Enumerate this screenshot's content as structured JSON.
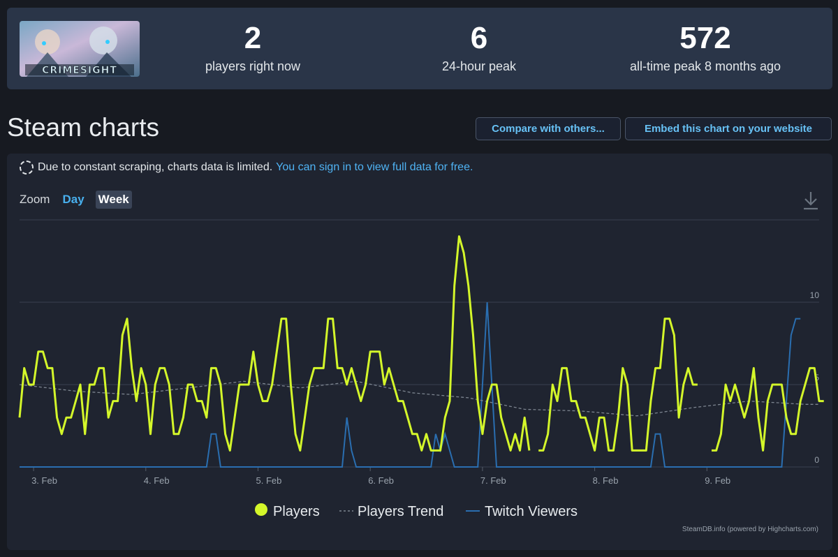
{
  "stats": {
    "game_logo_text": "CRIMESIGHT",
    "current": {
      "value": "2",
      "label": "players right now"
    },
    "peak24": {
      "value": "6",
      "label": "24-hour peak"
    },
    "alltime": {
      "value": "572",
      "label": "all-time peak 8 months ago"
    }
  },
  "header": {
    "title": "Steam charts",
    "compare_label": "Compare with others...",
    "embed_label": "Embed this chart on your website"
  },
  "notice": {
    "text": "Due to constant scraping, charts data is limited.",
    "link": "You can sign in to view full data for free."
  },
  "zoom": {
    "label": "Zoom",
    "options": [
      "Day",
      "Week"
    ],
    "selected": "Week"
  },
  "icons": {
    "download": "download-icon",
    "spinner": "dashed-circle-icon"
  },
  "colors": {
    "players": "#d4f72a",
    "trend": "#7d8590",
    "twitch": "#2a6eb0",
    "background": "#1f2430"
  },
  "credit": "SteamDB.info (powered by Highcharts.com)",
  "chart_data": {
    "type": "line",
    "x_axis": {
      "type": "datetime",
      "start": "2 Feb 21:00",
      "end": "10 Feb 00:00",
      "ticks": [
        "3. Feb",
        "4. Feb",
        "5. Feb",
        "6. Feb",
        "7. Feb",
        "8. Feb",
        "9. Feb"
      ]
    },
    "y_axis": {
      "min": 0,
      "max": 15,
      "ticks": [
        0,
        5,
        10
      ],
      "grid": true
    },
    "legend": {
      "position": "bottom-center"
    },
    "interval_hours": 1,
    "series": [
      {
        "name": "Players",
        "values": [
          3,
          6,
          5,
          5,
          7,
          7,
          6,
          6,
          3,
          2,
          3,
          3,
          4,
          5,
          2,
          5,
          5,
          6,
          6,
          3,
          4,
          4,
          8,
          9,
          6,
          4,
          6,
          5,
          2,
          5,
          6,
          6,
          5,
          2,
          2,
          3,
          5,
          5,
          4,
          4,
          3,
          6,
          6,
          5,
          2,
          1,
          3,
          5,
          5,
          5,
          7,
          5,
          4,
          4,
          5,
          7,
          9,
          9,
          5,
          2,
          1,
          3,
          5,
          6,
          6,
          6,
          9,
          9,
          6,
          6,
          5,
          6,
          5,
          4,
          5,
          7,
          7,
          7,
          5,
          6,
          5,
          4,
          4,
          3,
          2,
          2,
          1,
          2,
          1,
          1,
          1,
          3,
          4,
          11,
          14,
          13,
          11,
          8,
          4,
          2,
          4,
          5,
          5,
          3,
          2,
          1,
          2,
          1,
          3,
          1,
          null,
          null,
          null,
          null,
          null,
          null,
          null,
          null,
          null,
          null,
          null,
          null,
          null,
          null,
          null,
          null,
          null,
          null,
          null,
          null,
          null,
          null,
          null,
          null,
          null,
          null,
          null,
          null,
          null,
          null,
          null,
          null,
          null,
          null,
          null,
          null,
          null,
          null,
          null,
          null,
          null,
          null,
          null,
          null,
          null,
          null,
          null,
          null,
          null,
          null,
          null,
          null,
          null,
          null,
          null,
          null,
          null,
          null,
          null,
          null,
          null,
          null,
          null,
          null,
          null,
          null,
          null,
          null,
          null,
          null,
          null,
          null,
          null,
          null,
          null,
          null,
          null,
          null,
          null,
          null,
          null,
          null,
          null,
          null,
          null,
          null,
          null,
          null,
          null,
          null,
          null,
          null,
          null,
          null,
          null,
          null,
          null,
          null,
          null,
          null,
          null,
          null,
          null,
          null,
          null,
          null,
          null,
          null,
          null,
          null,
          null,
          null,
          null,
          null,
          null,
          null,
          null,
          null,
          null
        ],
        "segments": [
          {
            "start_hour": 0,
            "values": [
              3,
              6,
              5,
              5,
              7,
              7,
              6,
              6,
              3,
              2,
              3,
              3,
              4,
              5,
              2,
              5,
              5,
              6,
              6,
              3,
              4,
              4,
              8,
              9,
              6,
              4,
              6,
              5,
              2,
              5,
              6,
              6,
              5,
              2,
              2,
              3,
              5,
              5,
              4,
              4,
              3,
              6,
              6,
              5,
              2,
              1,
              3,
              5,
              5,
              5,
              7,
              5,
              4,
              4,
              5,
              7,
              9,
              9,
              5,
              2,
              1,
              3,
              5,
              6,
              6,
              6,
              9,
              9,
              6,
              6,
              5,
              6,
              5,
              4,
              5,
              7,
              7,
              7,
              5,
              6,
              5,
              4,
              4,
              3,
              2,
              2,
              1,
              2,
              1,
              1,
              1,
              3,
              4,
              11,
              14,
              13,
              11,
              8,
              4,
              2,
              4,
              5,
              5,
              3,
              2,
              1,
              2,
              1,
              3,
              1
            ]
          },
          {
            "start_hour": 111,
            "values": [
              1,
              1,
              2,
              5,
              4,
              6,
              6,
              4,
              4,
              3,
              3,
              2,
              1,
              3,
              3,
              1,
              1,
              3,
              6,
              5,
              1,
              1,
              1,
              1,
              4,
              6,
              6,
              9,
              9,
              8,
              3,
              5,
              6,
              5,
              5
            ]
          },
          {
            "start_hour": 148,
            "values": [
              1,
              1,
              2,
              5,
              4,
              5,
              4,
              3,
              4,
              6,
              3,
              1,
              4,
              5,
              5,
              5,
              3,
              2,
              2,
              4,
              5,
              6,
              6,
              4,
              4
            ]
          }
        ]
      },
      {
        "name": "Players Trend",
        "points": [
          [
            0,
            5.0
          ],
          [
            12,
            4.6
          ],
          [
            24,
            4.4
          ],
          [
            36,
            4.8
          ],
          [
            48,
            5.2
          ],
          [
            60,
            4.8
          ],
          [
            72,
            5.2
          ],
          [
            84,
            4.5
          ],
          [
            96,
            4.2
          ],
          [
            108,
            3.5
          ],
          [
            120,
            3.4
          ],
          [
            132,
            3.1
          ],
          [
            144,
            3.6
          ],
          [
            156,
            4.0
          ],
          [
            168,
            3.8
          ],
          [
            171,
            3.8
          ]
        ]
      },
      {
        "name": "Twitch Viewers",
        "points": [
          [
            0,
            0
          ],
          [
            40,
            0
          ],
          [
            41,
            2
          ],
          [
            42,
            2
          ],
          [
            43,
            0
          ],
          [
            69,
            0
          ],
          [
            70,
            3
          ],
          [
            71,
            1
          ],
          [
            72,
            0
          ],
          [
            88,
            0
          ],
          [
            89,
            2
          ],
          [
            90,
            1
          ],
          [
            91,
            2
          ],
          [
            92,
            1
          ],
          [
            93,
            0
          ],
          [
            98,
            0
          ],
          [
            100,
            10
          ],
          [
            102,
            0
          ],
          [
            135,
            0
          ],
          [
            136,
            2
          ],
          [
            137,
            2
          ],
          [
            138,
            0
          ],
          [
            163,
            0
          ],
          [
            164,
            4
          ],
          [
            165,
            8
          ],
          [
            166,
            9
          ],
          [
            167,
            9
          ]
        ]
      }
    ]
  }
}
